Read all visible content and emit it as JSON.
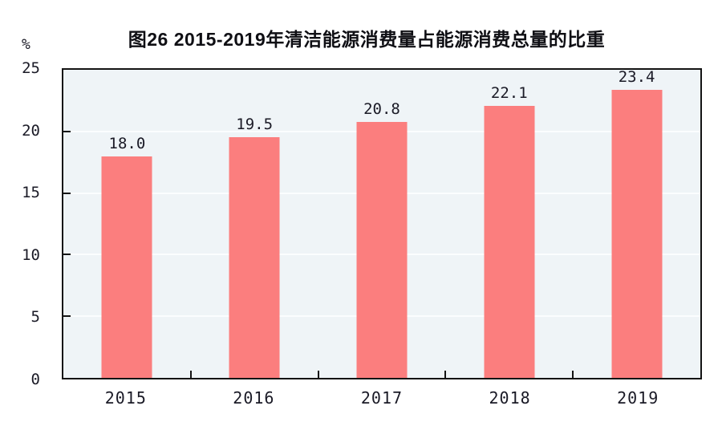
{
  "chart_data": {
    "type": "bar",
    "title": "图26  2015-2019年清洁能源消费量占能源消费总量的比重",
    "categories": [
      "2015",
      "2016",
      "2017",
      "2018",
      "2019"
    ],
    "values": [
      18.0,
      19.5,
      20.8,
      22.1,
      23.4
    ],
    "value_labels": [
      "18.0",
      "19.5",
      "20.8",
      "22.1",
      "23.4"
    ],
    "xlabel": "",
    "ylabel": "%",
    "ylim": [
      0,
      25
    ],
    "yticks": [
      0,
      5,
      10,
      15,
      20,
      25
    ],
    "grid": true,
    "legend_position": "none",
    "bar_color": "#FB7E7E",
    "plot_bg": "#EFF4F7",
    "grid_color": "#FBFDFE",
    "axis_color": "#141414",
    "text_color": "#1A1A26"
  }
}
